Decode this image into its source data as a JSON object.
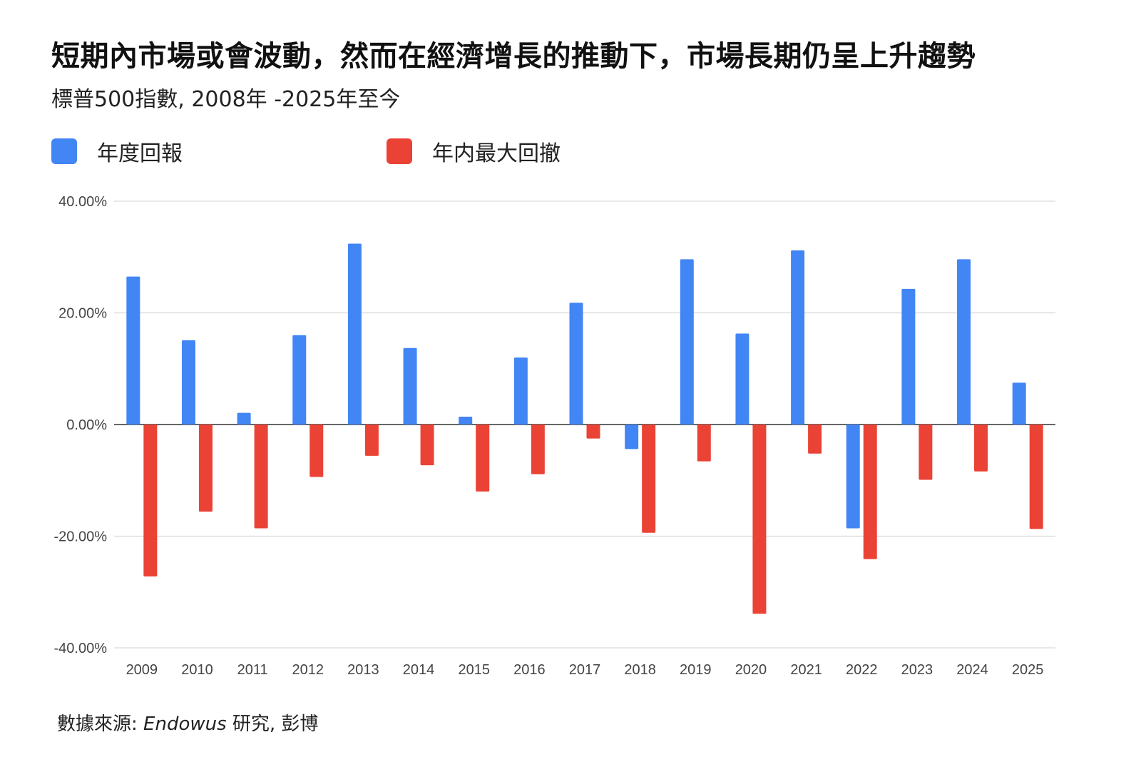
{
  "title": "短期內市場或會波動，然而在經濟增長的推動下，市場長期仍呈上升趨勢",
  "subtitle": "標普500指數, 2008年 -2025年至今",
  "legend": [
    {
      "label": "年度回報",
      "color": "#4285F4"
    },
    {
      "label": "年内最大回撤",
      "color": "#EA4335"
    }
  ],
  "source": {
    "prefix": "數據來源: ",
    "italic": "Endowus",
    "suffix": " 研究, 彭博"
  },
  "chart_data": {
    "type": "bar",
    "categories": [
      "2009",
      "2010",
      "2011",
      "2012",
      "2013",
      "2014",
      "2015",
      "2016",
      "2017",
      "2018",
      "2019",
      "2020",
      "2021",
      "2022",
      "2023",
      "2024",
      "2025"
    ],
    "series": [
      {
        "name": "年度回報",
        "color": "#4285F4",
        "values": [
          26.5,
          15.1,
          2.1,
          16.0,
          32.4,
          13.7,
          1.4,
          12.0,
          21.8,
          -4.4,
          29.6,
          16.3,
          31.2,
          -18.6,
          24.3,
          29.6,
          7.5
        ]
      },
      {
        "name": "年内最大回撤",
        "color": "#EA4335",
        "values": [
          -27.2,
          -15.6,
          -18.6,
          -9.4,
          -5.6,
          -7.3,
          -12.0,
          -8.9,
          -2.5,
          -19.4,
          -6.6,
          -33.9,
          -5.2,
          -24.1,
          -9.9,
          -8.4,
          -18.7
        ]
      }
    ],
    "yticks": [
      "40.00%",
      "20.00%",
      "0.00%",
      "-20.00%",
      "-40.00%"
    ],
    "ytick_values": [
      40,
      20,
      0,
      -20,
      -40
    ],
    "ylim": [
      -40,
      40
    ],
    "grid": true,
    "legend_position": "top-left"
  }
}
